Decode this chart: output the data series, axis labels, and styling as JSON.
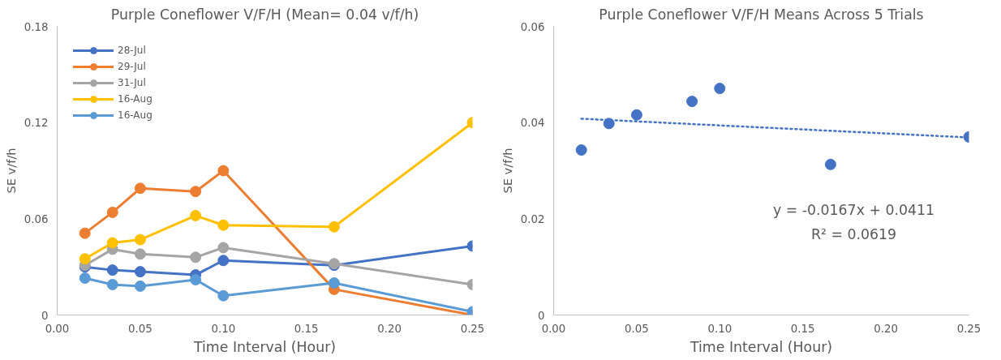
{
  "chart_data": [
    {
      "type": "line",
      "title": "Purple Coneflower V/F/H (Mean= 0.04 v/f/h)",
      "xlabel": "Time Interval (Hour)",
      "ylabel": "SE v/f/h",
      "x": [
        0.0167,
        0.0333,
        0.05,
        0.0833,
        0.1,
        0.1667,
        0.25
      ],
      "series": [
        {
          "name": "28-Jul",
          "color": "#4472c4",
          "values": [
            0.03,
            0.028,
            0.027,
            0.025,
            0.034,
            0.031,
            0.043
          ]
        },
        {
          "name": "29-Jul",
          "color": "#ed7d31",
          "values": [
            0.051,
            0.064,
            0.079,
            0.077,
            0.09,
            0.016,
            0.0
          ]
        },
        {
          "name": "31-Jul",
          "color": "#a5a5a5",
          "values": [
            0.031,
            0.041,
            0.038,
            0.036,
            0.042,
            0.032,
            0.019
          ]
        },
        {
          "name": "16-Aug",
          "color": "#ffc000",
          "values": [
            0.035,
            0.045,
            0.047,
            0.062,
            0.056,
            0.055,
            0.12
          ]
        },
        {
          "name": "16-Aug",
          "color": "#5b9bd5",
          "values": [
            0.023,
            0.019,
            0.018,
            0.022,
            0.012,
            0.02,
            0.002
          ]
        }
      ],
      "xlim": [
        0,
        0.25
      ],
      "ylim": [
        0,
        0.18
      ],
      "xticks": [
        {
          "value": 0,
          "label": "0.00"
        },
        {
          "value": 0.05,
          "label": "0.05"
        },
        {
          "value": 0.1,
          "label": "0.10"
        },
        {
          "value": 0.15,
          "label": "0.15"
        },
        {
          "value": 0.2,
          "label": "0.20"
        },
        {
          "value": 0.25,
          "label": "0.25"
        }
      ],
      "yticks": [
        0,
        0.06,
        0.12,
        0.18
      ],
      "marker": "circle",
      "legend": "top left",
      "grid": false
    },
    {
      "type": "scatter",
      "title": "Purple Coneflower V/F/H Means Across 5 Trials",
      "xlabel": "Time Interval (Hour)",
      "ylabel": "SE v/f/h",
      "x": [
        0.0167,
        0.0333,
        0.05,
        0.0833,
        0.1,
        0.1667,
        0.25
      ],
      "series": [
        {
          "color": "#4472c4",
          "values": [
            0.0343,
            0.0398,
            0.0416,
            0.0444,
            0.0471,
            0.0313,
            0.037
          ]
        },
        {
          "type": "line",
          "line_style": "dotted",
          "marker": "none",
          "color": "#4472c4",
          "x": [
            0.0167,
            0.25
          ],
          "values": [
            0.0408,
            0.0369
          ]
        }
      ],
      "annotations": [
        "y = -0.0167x + 0.0411",
        "R² = 0.0619"
      ],
      "xlim": [
        0,
        0.25
      ],
      "ylim": [
        0,
        0.06
      ],
      "xticks": [
        {
          "value": 0,
          "label": "0.00"
        },
        {
          "value": 0.05,
          "label": "0.05"
        },
        {
          "value": 0.1,
          "label": "0.10"
        },
        {
          "value": 0.15,
          "label": "0.15"
        },
        {
          "value": 0.2,
          "label": "0.20"
        },
        {
          "value": 0.25,
          "label": "0.25"
        }
      ],
      "yticks": [
        0,
        0.02,
        0.04,
        0.06
      ],
      "marker": "circle",
      "grid": false
    }
  ]
}
